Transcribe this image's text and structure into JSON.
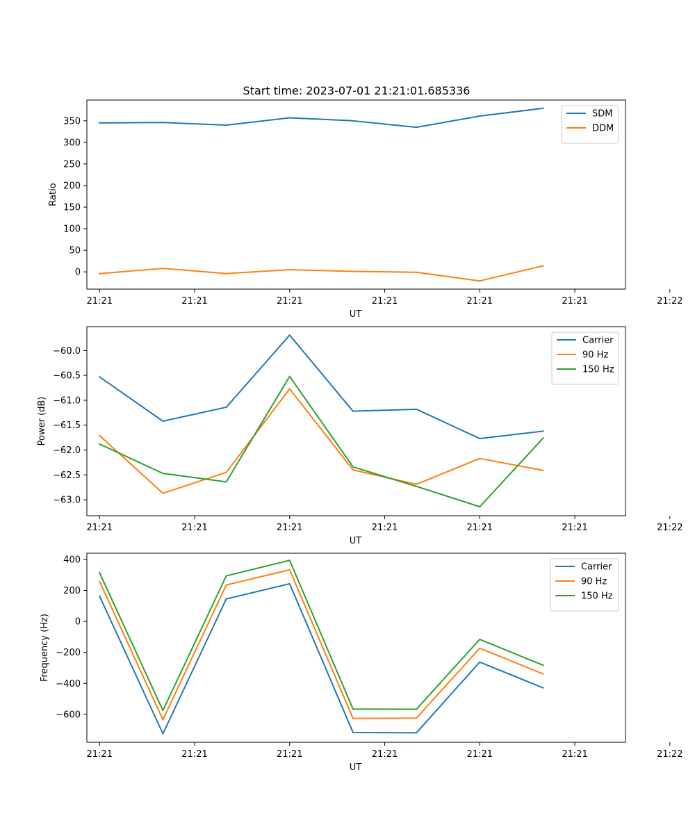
{
  "chart_data": [
    {
      "type": "line",
      "title": "Start time: 2023-07-01 21:21:01.685336",
      "xlabel": "UT",
      "ylabel": "Ratio",
      "x": [
        1,
        2,
        3,
        4,
        5,
        6,
        7,
        8
      ],
      "xlim": [
        0.8,
        9.3
      ],
      "xticks": [
        1,
        2.5,
        4,
        5.5,
        7,
        8.5,
        10
      ],
      "xtick_labels": [
        "21:21",
        "21:21",
        "21:21",
        "21:21",
        "21:21",
        "21:21",
        "21:22"
      ],
      "ylim": [
        -40,
        398
      ],
      "yticks": [
        0,
        50,
        100,
        150,
        200,
        250,
        300,
        350
      ],
      "ytick_labels": [
        "0",
        "50",
        "100",
        "150",
        "200",
        "250",
        "300",
        "350"
      ],
      "legend": "top-right",
      "series": [
        {
          "name": "SDM",
          "color": "#1f77b4",
          "values": [
            345,
            346,
            340,
            357,
            350,
            335,
            361,
            379
          ]
        },
        {
          "name": "DDM",
          "color": "#ff7f0e",
          "values": [
            -4,
            8,
            -4,
            5,
            1,
            -1,
            -21,
            14
          ]
        }
      ]
    },
    {
      "type": "line",
      "title": "",
      "xlabel": "UT",
      "ylabel": "Power (dB)",
      "x": [
        1,
        2,
        3,
        4,
        5,
        6,
        7,
        8
      ],
      "xlim": [
        0.8,
        9.3
      ],
      "xticks": [
        1,
        2.5,
        4,
        5.5,
        7,
        8.5,
        10
      ],
      "xtick_labels": [
        "21:21",
        "21:21",
        "21:21",
        "21:21",
        "21:21",
        "21:21",
        "21:22"
      ],
      "ylim": [
        -63.32,
        -59.52
      ],
      "yticks": [
        -63.0,
        -62.5,
        -62.0,
        -61.5,
        -61.0,
        -60.5,
        -60.0
      ],
      "ytick_labels": [
        "−63.0",
        "−62.5",
        "−62.0",
        "−61.5",
        "−61.0",
        "−60.5",
        "−60.0"
      ],
      "legend": "top-right",
      "series": [
        {
          "name": "Carrier",
          "color": "#1f77b4",
          "values": [
            -60.53,
            -61.42,
            -61.14,
            -59.69,
            -61.22,
            -61.18,
            -61.77,
            -61.62
          ]
        },
        {
          "name": "90 Hz",
          "color": "#ff7f0e",
          "values": [
            -61.71,
            -62.87,
            -62.45,
            -60.77,
            -62.4,
            -62.69,
            -62.17,
            -62.41
          ]
        },
        {
          "name": "150 Hz",
          "color": "#2ca02c",
          "values": [
            -61.88,
            -62.47,
            -62.64,
            -60.52,
            -62.34,
            -62.73,
            -63.14,
            -61.76
          ]
        }
      ]
    },
    {
      "type": "line",
      "title": "",
      "xlabel": "UT",
      "ylabel": "Frequency (Hz)",
      "x": [
        1,
        2,
        3,
        4,
        5,
        6,
        7,
        8
      ],
      "xlim": [
        0.8,
        9.3
      ],
      "xticks": [
        1,
        2.5,
        4,
        5.5,
        7,
        8.5,
        10
      ],
      "xtick_labels": [
        "21:21",
        "21:21",
        "21:21",
        "21:21",
        "21:21",
        "21:21",
        "21:22"
      ],
      "ylim": [
        -780,
        440
      ],
      "yticks": [
        -600,
        -400,
        -200,
        0,
        200,
        400
      ],
      "ytick_labels": [
        "−600",
        "−400",
        "−200",
        "0",
        "200",
        "400"
      ],
      "legend": "top-right",
      "series": [
        {
          "name": "Carrier",
          "color": "#1f77b4",
          "values": [
            163,
            -725,
            145,
            243,
            -717,
            -719,
            -263,
            -429
          ]
        },
        {
          "name": "90 Hz",
          "color": "#ff7f0e",
          "values": [
            258,
            -634,
            235,
            333,
            -626,
            -624,
            -173,
            -339
          ]
        },
        {
          "name": "150 Hz",
          "color": "#2ca02c",
          "values": [
            314,
            -575,
            294,
            394,
            -566,
            -567,
            -116,
            -283
          ]
        }
      ]
    }
  ]
}
